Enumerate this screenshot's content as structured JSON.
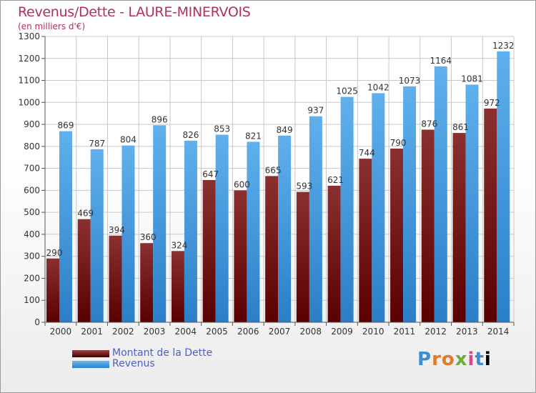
{
  "header": {
    "title": "Revenus/Dette - LAURE-MINERVOIS",
    "subtitle": "(en milliers d'€)"
  },
  "logo": {
    "text": "Proxiti"
  },
  "colors": {
    "debt_dark": "#5a0000",
    "debt_light": "#8a3030",
    "revenue_dark": "#2a7fc8",
    "revenue_light": "#5fb0ec",
    "axis": "#555555",
    "grid": "#c8c8c8"
  },
  "chart_data": {
    "type": "bar",
    "title": "Revenus/Dette - LAURE-MINERVOIS",
    "subtitle": "(en milliers d'€)",
    "categories": [
      "2000",
      "2001",
      "2002",
      "2003",
      "2004",
      "2005",
      "2006",
      "2007",
      "2008",
      "2009",
      "2010",
      "2011",
      "2012",
      "2013",
      "2014"
    ],
    "series": [
      {
        "name": "Montant de la Dette",
        "values": [
          290,
          469,
          394,
          360,
          324,
          647,
          600,
          665,
          593,
          621,
          744,
          790,
          876,
          861,
          972
        ]
      },
      {
        "name": "Revenus",
        "values": [
          869,
          787,
          804,
          896,
          826,
          853,
          821,
          849,
          937,
          1025,
          1042,
          1073,
          1164,
          1081,
          1232
        ]
      }
    ],
    "ylim": [
      0,
      1300
    ],
    "yticks": [
      0,
      100,
      200,
      300,
      400,
      500,
      600,
      700,
      800,
      900,
      1000,
      1100,
      1200,
      1300
    ],
    "grid": true,
    "legend": "bottom-left"
  }
}
